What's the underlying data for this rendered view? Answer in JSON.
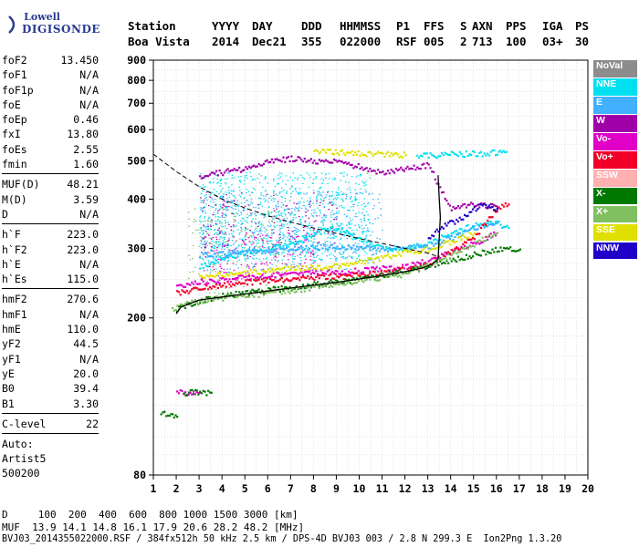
{
  "logo": {
    "line1": "Lowell",
    "line2": "DIGISONDE"
  },
  "header": {
    "labels": [
      "Station",
      "YYYY",
      "DAY",
      "DDD",
      "HHMMSS",
      "P1",
      "FFS",
      "S",
      "AXN",
      "PPS",
      "IGA",
      "PS"
    ],
    "values": [
      "Boa Vista",
      "2014",
      "Dec21",
      "355",
      "022000",
      "RSF",
      "005",
      "2",
      "713",
      "100",
      "03+",
      "30"
    ]
  },
  "params": {
    "groups": [
      [
        [
          "foF2",
          "13.450"
        ],
        [
          "foF1",
          "N/A"
        ],
        [
          "foF1p",
          "N/A"
        ],
        [
          "foE",
          "N/A"
        ],
        [
          "foEp",
          "0.46"
        ],
        [
          "fxI",
          "13.80"
        ],
        [
          "foEs",
          "2.55"
        ],
        [
          "fmin",
          "1.60"
        ]
      ],
      [
        [
          "MUF(D)",
          "48.21"
        ],
        [
          "M(D)",
          "3.59"
        ],
        [
          "D",
          "N/A"
        ]
      ],
      [
        [
          "h`F",
          "223.0"
        ],
        [
          "h`F2",
          "223.0"
        ],
        [
          "h`E",
          "N/A"
        ],
        [
          "h`Es",
          "115.0"
        ]
      ],
      [
        [
          "hmF2",
          "270.6"
        ],
        [
          "hmF1",
          "N/A"
        ],
        [
          "hmE",
          "110.0"
        ],
        [
          "yF2",
          "44.5"
        ],
        [
          "yF1",
          "N/A"
        ],
        [
          "yE",
          "20.0"
        ],
        [
          "B0",
          "39.4"
        ],
        [
          "B1",
          "3.30"
        ]
      ],
      [
        [
          "C-level",
          "22"
        ]
      ]
    ],
    "auto": [
      "Auto:",
      "Artist5",
      "500200"
    ]
  },
  "footer": {
    "line1": "D     100  200  400  600  800 1000 1500 3000 [km]",
    "line2": "MUF  13.9 14.1 14.8 16.1 17.9 20.6 28.2 48.2 [MHz]",
    "line3": "BVJ03_2014355022000.RSF / 384fx512h 50 kHz 2.5 km / DPS-4D BVJ03 003 / 2.8 N 299.3 E  Ion2Png 1.3.20"
  },
  "legend": [
    {
      "label": "NoVal",
      "color": "#8c8c8c"
    },
    {
      "label": "NNE",
      "color": "#00e0f0"
    },
    {
      "label": "E",
      "color": "#40b0ff"
    },
    {
      "label": "W",
      "color": "#a000a8"
    },
    {
      "label": "Vo-",
      "color": "#e000c8"
    },
    {
      "label": "Vo+",
      "color": "#f00028"
    },
    {
      "label": "SSW",
      "color": "#ffb0b0"
    },
    {
      "label": "X-",
      "color": "#007800"
    },
    {
      "label": "X+",
      "color": "#80c060"
    },
    {
      "label": "SSE",
      "color": "#e0e000"
    },
    {
      "label": "NNW",
      "color": "#2000c8"
    }
  ],
  "chart_data": {
    "type": "scatter",
    "xlim": [
      1,
      20
    ],
    "ylim": [
      80,
      900
    ],
    "xticks": [
      "1",
      "2",
      "3",
      "4",
      "5",
      "6",
      "7",
      "8",
      "9",
      "10",
      "11",
      "12",
      "13",
      "14",
      "15",
      "16",
      "17",
      "18",
      "19",
      "20"
    ],
    "yticks": [
      "80",
      "200",
      "300",
      "400",
      "500",
      "600",
      "700",
      "800",
      "900"
    ],
    "ytick_values": [
      80,
      200,
      300,
      400,
      500,
      600,
      700,
      800,
      900
    ],
    "y_scale": "log",
    "grid": true,
    "legend_position": "right",
    "profile": [
      [
        2.0,
        205
      ],
      [
        2.2,
        213
      ],
      [
        3,
        222
      ],
      [
        4,
        226
      ],
      [
        5,
        230
      ],
      [
        6,
        234
      ],
      [
        7,
        238
      ],
      [
        8,
        242
      ],
      [
        9,
        246
      ],
      [
        10,
        251
      ],
      [
        11,
        256
      ],
      [
        12,
        262
      ],
      [
        12.8,
        268
      ],
      [
        13.2,
        274
      ],
      [
        13.45,
        282
      ]
    ],
    "profile_hook": [
      [
        13.45,
        282
      ],
      [
        13.5,
        320
      ],
      [
        13.55,
        360
      ],
      [
        13.5,
        400
      ],
      [
        13.45,
        460
      ]
    ],
    "trace_dashed": [
      [
        1,
        520
      ],
      [
        2,
        470
      ],
      [
        3,
        430
      ],
      [
        4,
        400
      ],
      [
        5,
        380
      ],
      [
        6,
        363
      ],
      [
        7,
        350
      ],
      [
        8,
        338
      ],
      [
        9,
        328
      ],
      [
        10,
        318
      ],
      [
        11,
        309
      ],
      [
        12,
        300
      ],
      [
        13,
        292
      ],
      [
        13.45,
        286
      ]
    ],
    "echo_traces": [
      {
        "name": "NNE",
        "color": "#00e0f0",
        "points": [
          [
            3,
            270
          ],
          [
            4,
            285
          ],
          [
            5,
            295
          ],
          [
            6,
            300
          ],
          [
            7,
            310
          ],
          [
            8,
            330
          ],
          [
            9,
            340
          ],
          [
            10,
            320
          ],
          [
            11,
            300
          ],
          [
            12,
            300
          ],
          [
            13,
            310
          ],
          [
            14,
            330
          ],
          [
            15,
            345
          ],
          [
            16,
            350
          ],
          [
            16.5,
            340
          ]
        ]
      },
      {
        "name": "E",
        "color": "#40b0ff",
        "points": [
          [
            3,
            290
          ],
          [
            5,
            295
          ],
          [
            7,
            300
          ],
          [
            9,
            305
          ],
          [
            11,
            300
          ],
          [
            13,
            305
          ],
          [
            14,
            320
          ],
          [
            15,
            340
          ],
          [
            16,
            350
          ]
        ]
      },
      {
        "name": "W",
        "color": "#a000a8",
        "points": [
          [
            3,
            460
          ],
          [
            4,
            470
          ],
          [
            5,
            480
          ],
          [
            6,
            500
          ],
          [
            7,
            510
          ],
          [
            8,
            500
          ],
          [
            9,
            500
          ],
          [
            11,
            470
          ],
          [
            12,
            480
          ],
          [
            13,
            490
          ],
          [
            14,
            380
          ],
          [
            15,
            390
          ],
          [
            16,
            385
          ]
        ]
      },
      {
        "name": "Vo-",
        "color": "#e000c8",
        "points": [
          [
            2,
            240
          ],
          [
            3,
            248
          ],
          [
            4,
            250
          ],
          [
            5,
            255
          ],
          [
            6,
            258
          ],
          [
            7,
            260
          ],
          [
            8,
            262
          ],
          [
            9,
            262
          ],
          [
            10,
            265
          ],
          [
            11,
            268
          ],
          [
            12,
            272
          ],
          [
            13,
            280
          ],
          [
            14,
            295
          ],
          [
            15,
            310
          ],
          [
            16,
            330
          ]
        ]
      },
      {
        "name": "Vo+",
        "color": "#f00028",
        "points": [
          [
            2,
            232
          ],
          [
            3,
            240
          ],
          [
            4,
            244
          ],
          [
            5,
            247
          ],
          [
            6,
            250
          ],
          [
            7,
            252
          ],
          [
            8,
            254
          ],
          [
            9,
            256
          ],
          [
            10,
            258
          ],
          [
            11,
            262
          ],
          [
            12,
            267
          ],
          [
            13,
            275
          ],
          [
            14,
            295
          ],
          [
            15,
            320
          ],
          [
            16,
            380
          ],
          [
            16.5,
            390
          ]
        ]
      },
      {
        "name": "X-",
        "color": "#007800",
        "points": [
          [
            2,
            212
          ],
          [
            3,
            222
          ],
          [
            4,
            228
          ],
          [
            5,
            233
          ],
          [
            6,
            236
          ],
          [
            7,
            240
          ],
          [
            8,
            244
          ],
          [
            9,
            248
          ],
          [
            10,
            252
          ],
          [
            11,
            258
          ],
          [
            12,
            264
          ],
          [
            13,
            272
          ],
          [
            16,
            300
          ],
          [
            17,
            300
          ]
        ]
      },
      {
        "name": "X+",
        "color": "#80c060",
        "points": [
          [
            1.8,
            210
          ],
          [
            2.5,
            220
          ],
          [
            4,
            226
          ],
          [
            6,
            232
          ],
          [
            8,
            240
          ],
          [
            10,
            250
          ],
          [
            12,
            260
          ],
          [
            14,
            290
          ],
          [
            16,
            330
          ]
        ]
      },
      {
        "name": "SSE",
        "color": "#e0e000",
        "points": [
          [
            3,
            255
          ],
          [
            5,
            262
          ],
          [
            7,
            268
          ],
          [
            9,
            272
          ],
          [
            11,
            285
          ],
          [
            12,
            295
          ],
          [
            13,
            300
          ],
          [
            14,
            315
          ],
          [
            15,
            330
          ]
        ]
      },
      {
        "name": "NNW",
        "color": "#2000c8",
        "points": [
          [
            13,
            320
          ],
          [
            13.5,
            340
          ],
          [
            14,
            350
          ],
          [
            14.5,
            360
          ],
          [
            15,
            380
          ],
          [
            15.5,
            390
          ],
          [
            16,
            380
          ]
        ]
      },
      {
        "name": "NNE-upper",
        "color": "#00e0f0",
        "points": [
          [
            12.5,
            520
          ],
          [
            13,
            520
          ],
          [
            13.5,
            520
          ],
          [
            14,
            522
          ],
          [
            14.5,
            522
          ],
          [
            15,
            525
          ],
          [
            15.5,
            525
          ],
          [
            16,
            528
          ],
          [
            16.4,
            530
          ]
        ]
      },
      {
        "name": "SSE-upper",
        "color": "#e0e000",
        "points": [
          [
            8,
            530
          ],
          [
            8.5,
            530
          ],
          [
            9,
            528
          ],
          [
            10,
            525
          ],
          [
            11,
            522
          ],
          [
            12,
            520
          ]
        ]
      },
      {
        "name": "Vo-Es",
        "color": "#e000c8",
        "points": [
          [
            2,
            130
          ],
          [
            2.5,
            130
          ],
          [
            3,
            130
          ]
        ]
      },
      {
        "name": "X-Es",
        "color": "#007800",
        "points": [
          [
            2.3,
            130
          ],
          [
            3,
            130
          ],
          [
            3.5,
            130
          ]
        ]
      },
      {
        "name": "X-low",
        "color": "#007800",
        "points": [
          [
            1.3,
            115
          ],
          [
            1.6,
            115
          ],
          [
            2,
            113
          ]
        ]
      }
    ]
  }
}
